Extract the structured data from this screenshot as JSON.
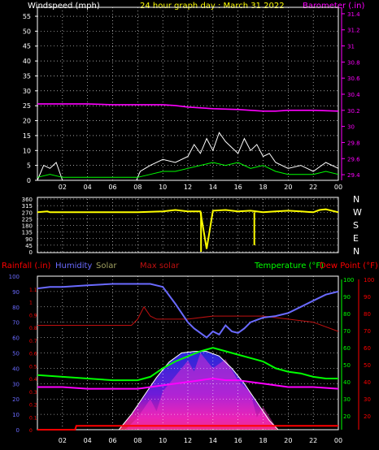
{
  "header": {
    "left_label": "Windspeed (mph)",
    "center_label": "24 hour graph day : March 31 2022",
    "right_label": "Barometer (.in)"
  },
  "colors": {
    "background": "#000000",
    "grid": "#ffffff",
    "wind_axis": "#ffffff",
    "wind_gust": "#ffffff",
    "wind_avg": "#00ff00",
    "barometer": "#ff00ff",
    "direction": "#ffff00",
    "rain": "#ff0000",
    "humidity": "#6a6aff",
    "solar": "#a0a060",
    "max_solar": "#c01010",
    "temperature": "#00ff00",
    "dew_point": "#ff0000",
    "left_axis": "#6a6aff",
    "right_axis_temp": "#00ff00",
    "right_axis_dew": "#ff0000"
  },
  "x_ticks": [
    "02",
    "04",
    "06",
    "08",
    "10",
    "12",
    "14",
    "16",
    "18",
    "20",
    "22",
    "00"
  ],
  "direction_labels": [
    "N",
    "W",
    "S",
    "E",
    "N"
  ],
  "bottom_legend": {
    "rainfall": "Rainfall (.in)",
    "humidity": "Humidity",
    "solar": "Solar",
    "max_solar": "Max solar",
    "temperature": "Temperature (°F)",
    "dew_point": "Dew Point (°F)"
  },
  "chart_data": [
    {
      "type": "line",
      "title": "24 hour graph day : March 31 2022",
      "xlabel": "",
      "xlim": [
        0,
        24
      ],
      "y_left": {
        "label": "Windspeed (mph)",
        "lim": [
          0,
          58
        ],
        "ticks": [
          "0",
          "5",
          "10",
          "15",
          "20",
          "25",
          "30",
          "35",
          "40",
          "45",
          "50",
          "55"
        ]
      },
      "y_right": {
        "label": "Barometer (.in)",
        "lim": [
          29.33,
          31.48
        ],
        "ticks": [
          "29.4",
          "29.6",
          "29.8",
          "30",
          "30.2",
          "30.4",
          "30.6",
          "30.8",
          "31",
          "31.2",
          "31.4"
        ]
      },
      "grid": true,
      "series": [
        {
          "name": "Barometer",
          "axis": "right",
          "x": [
            0,
            2,
            4,
            6,
            8,
            10,
            11,
            12,
            14,
            16,
            17,
            18,
            19,
            20,
            22,
            24
          ],
          "values": [
            30.28,
            30.28,
            30.28,
            30.27,
            30.27,
            30.27,
            30.26,
            30.24,
            30.22,
            30.21,
            30.2,
            30.19,
            30.19,
            30.2,
            30.2,
            30.19
          ]
        },
        {
          "name": "Gust",
          "axis": "left",
          "x": [
            0,
            0.5,
            1,
            1.5,
            2,
            7.9,
            8.2,
            9,
            10,
            11,
            12,
            12.5,
            13,
            13.5,
            14,
            14.5,
            15,
            15.5,
            16,
            16.5,
            17,
            17.5,
            18,
            18.5,
            19,
            20,
            21,
            22,
            23,
            24
          ],
          "values": [
            0,
            5,
            4,
            6,
            0,
            0,
            3,
            5,
            7,
            6,
            8,
            12,
            9,
            14,
            10,
            16,
            13,
            11,
            9,
            14,
            10,
            12,
            8,
            9,
            6,
            4,
            5,
            3,
            6,
            4
          ]
        },
        {
          "name": "Average",
          "axis": "left",
          "x": [
            0,
            1,
            2,
            8,
            9,
            10,
            11,
            12,
            13,
            14,
            15,
            16,
            17,
            18,
            19,
            20,
            21,
            22,
            23,
            24
          ],
          "values": [
            1,
            2,
            1,
            1,
            2,
            3,
            3,
            4,
            5,
            6,
            5,
            6,
            4,
            5,
            3,
            2,
            2,
            2,
            3,
            2
          ]
        }
      ]
    },
    {
      "type": "scatter",
      "ylabel": "Direction",
      "xlim": [
        0,
        24
      ],
      "y": {
        "lim": [
          0,
          360
        ],
        "ticks": [
          "360",
          "315",
          "270",
          "225",
          "180",
          "135",
          "90",
          "45",
          "0"
        ]
      },
      "series": [
        {
          "name": "Direction",
          "x": [
            0,
            0.8,
            1,
            8,
            10,
            11,
            12,
            13,
            13.5,
            14,
            15,
            16,
            17,
            18,
            19,
            20,
            21,
            22,
            22.5,
            23,
            24
          ],
          "values": [
            270,
            275,
            270,
            270,
            275,
            285,
            275,
            275,
            20,
            280,
            285,
            275,
            280,
            270,
            275,
            280,
            275,
            270,
            285,
            290,
            270
          ]
        },
        {
          "name": "Direction spikes",
          "x": [
            13.05,
            17.3
          ],
          "values": [
            0,
            45
          ]
        }
      ]
    },
    {
      "type": "line",
      "xlim": [
        0,
        24
      ],
      "y_left": {
        "label": "Humidity",
        "lim": [
          0,
          100
        ],
        "ticks": [
          "0",
          "10",
          "20",
          "30",
          "40",
          "50",
          "60",
          "70",
          "80",
          "90",
          "100"
        ]
      },
      "y_left2": {
        "label": "Rainfall (.in)",
        "lim": [
          0,
          1.2
        ],
        "ticks": [
          "0",
          "0.1",
          "0.2",
          "0.3",
          "0.4",
          "0.5",
          "0.6",
          "0.7",
          "0.8",
          "0.9",
          "1",
          "1.1"
        ]
      },
      "y_right": {
        "label": "Temperature (°F)",
        "lim": [
          12,
          102
        ],
        "ticks": [
          "20",
          "30",
          "40",
          "50",
          "60",
          "70",
          "80",
          "90",
          "100"
        ]
      },
      "y_right2": {
        "label": "Dew Point (°F)",
        "ticks": [
          "20",
          "30",
          "40",
          "50",
          "60",
          "70",
          "80",
          "90",
          "100"
        ]
      },
      "grid": true,
      "series": [
        {
          "name": "Humidity",
          "axis": "humidity",
          "x": [
            0,
            1,
            2,
            4,
            6,
            8,
            9,
            10,
            11,
            12,
            12.5,
            13,
            13.5,
            14,
            14.5,
            15,
            15.5,
            16,
            16.5,
            17,
            18,
            19,
            20,
            21,
            22,
            23,
            24
          ],
          "values": [
            92,
            93,
            93,
            94,
            95,
            95,
            95,
            93,
            82,
            70,
            66,
            63,
            60,
            64,
            62,
            68,
            64,
            63,
            66,
            70,
            73,
            74,
            76,
            80,
            84,
            88,
            90
          ]
        },
        {
          "name": "Temperature",
          "axis": "temp",
          "x": [
            0,
            2,
            4,
            6,
            7,
            8,
            9,
            10,
            11,
            12,
            13,
            14,
            15,
            16,
            17,
            18,
            19,
            20,
            21,
            22,
            23,
            24
          ],
          "values": [
            44,
            43,
            42,
            41,
            41,
            41,
            43,
            48,
            52,
            55,
            58,
            60,
            58,
            56,
            54,
            52,
            48,
            46,
            45,
            43,
            42,
            42
          ]
        },
        {
          "name": "Dew Point",
          "axis": "temp",
          "x": [
            0,
            2,
            4,
            6,
            8,
            9,
            10,
            11,
            12,
            13,
            14,
            15,
            16,
            17,
            18,
            19,
            20,
            22,
            24
          ],
          "values": [
            37,
            37,
            36,
            36,
            36,
            37,
            38,
            39,
            40,
            41,
            42,
            41,
            41,
            40,
            39,
            38,
            37,
            37,
            36
          ]
        },
        {
          "name": "Max solar",
          "axis": "humidity",
          "x": [
            0,
            4,
            6,
            7.5,
            8,
            8.5,
            9,
            9.5,
            10,
            12,
            14,
            16,
            18,
            20,
            22,
            24
          ],
          "values": [
            68,
            68,
            68,
            68,
            72,
            80,
            74,
            72,
            72,
            72,
            74,
            74,
            74,
            72,
            70,
            64
          ]
        },
        {
          "name": "Solar curve",
          "axis": "humidity",
          "x": [
            6.5,
            7.5,
            8.5,
            9.5,
            10.5,
            11.5,
            12.5,
            13.5,
            14.5,
            15.5,
            16.5,
            17.5,
            18.5,
            19.2
          ],
          "values": [
            0,
            10,
            22,
            34,
            44,
            50,
            51,
            51,
            48,
            40,
            30,
            18,
            6,
            0
          ]
        },
        {
          "name": "Solar",
          "axis": "humidity",
          "x": [
            7,
            8,
            9,
            9.5,
            10,
            11,
            12,
            12.5,
            13,
            14,
            15,
            16,
            17,
            17.5,
            18,
            19
          ],
          "values": [
            0,
            8,
            20,
            12,
            25,
            35,
            45,
            38,
            50,
            40,
            46,
            32,
            24,
            8,
            15,
            2
          ]
        },
        {
          "name": "Rainfall",
          "axis": "rain",
          "x": [
            0,
            3,
            3.1,
            10,
            10.1,
            24
          ],
          "values": [
            0,
            0,
            0.03,
            0.03,
            0.03,
            0.03
          ]
        }
      ]
    }
  ]
}
